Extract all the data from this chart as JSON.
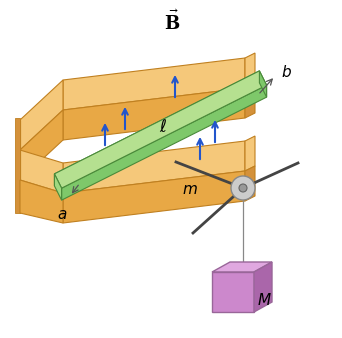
{
  "bg_color": "#ffffff",
  "rail_top_face": "#f5c87a",
  "rail_front_face": "#e8a845",
  "rail_side_face": "#d4913a",
  "bar_top_face": "#b5e090",
  "bar_front_face": "#7ec86a",
  "bar_left_face": "#a0d880",
  "bar_edge_color": "#4a8a3a",
  "arrow_color": "#2255cc",
  "mass_front": "#cc88cc",
  "mass_top": "#e0a8e0",
  "mass_side": "#aa66aa",
  "mass_edge": "#996699",
  "pulley_outer": "#b0b0b0",
  "pulley_inner": "#888888",
  "rod_color": "#444444",
  "string_color": "#888888",
  "text_color": "#000000"
}
